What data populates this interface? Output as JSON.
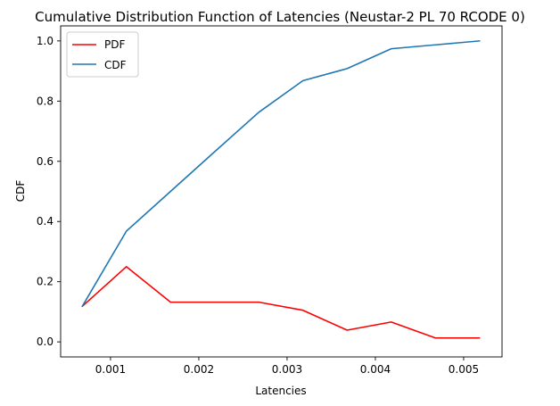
{
  "chart_data": {
    "type": "line",
    "title": "Cumulative Distribution Function of Latencies (Neustar-2 PL 70 RCODE 0)",
    "xlabel": "Latencies",
    "ylabel": "CDF",
    "xlim": [
      0.000435,
      0.005435
    ],
    "ylim": [
      -0.05,
      1.05
    ],
    "xticks": [
      0.001,
      0.002,
      0.003,
      0.004,
      0.005
    ],
    "xtick_labels": [
      "0.001",
      "0.002",
      "0.003",
      "0.004",
      "0.005"
    ],
    "yticks": [
      0.0,
      0.2,
      0.4,
      0.6,
      0.8,
      1.0
    ],
    "ytick_labels": [
      "0.0",
      "0.2",
      "0.4",
      "0.6",
      "0.8",
      "1.0"
    ],
    "grid": false,
    "legend_position": "top-left",
    "x": [
      0.00068,
      0.00118,
      0.00168,
      0.00218,
      0.00268,
      0.00318,
      0.00368,
      0.00418,
      0.00468,
      0.00518
    ],
    "series": [
      {
        "name": "PDF",
        "color": "#ff0000",
        "values": [
          0.118,
          0.25,
          0.132,
          0.132,
          0.132,
          0.105,
          0.039,
          0.066,
          0.013,
          0.013
        ]
      },
      {
        "name": "CDF",
        "color": "#1f77b4",
        "values": [
          0.118,
          0.368,
          0.5,
          0.632,
          0.763,
          0.868,
          0.908,
          0.974,
          0.987,
          1.0
        ]
      }
    ]
  }
}
